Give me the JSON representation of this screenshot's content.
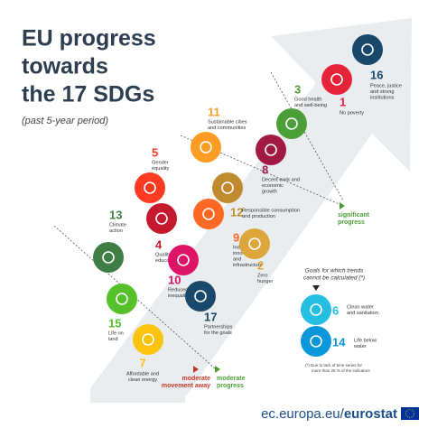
{
  "header": {
    "title": [
      "EU progress",
      "towards",
      "the 17 SDGs"
    ],
    "subtitle": "(past 5-year period)"
  },
  "zones": {
    "significant": [
      "significant",
      "progress"
    ],
    "moderate": [
      "moderate",
      "progress"
    ],
    "away": [
      "moderate",
      "movement away"
    ]
  },
  "nodes": [
    {
      "number": 16,
      "label": [
        "Peace, justice",
        "and strong",
        "institutions"
      ],
      "color": "#19486a"
    },
    {
      "number": 1,
      "label": [
        "No poverty"
      ],
      "color": "#e5243b"
    },
    {
      "number": 3,
      "label": [
        "Good health",
        "and well-being"
      ],
      "color": "#4c9f38"
    },
    {
      "number": 8,
      "label": [
        "Decent work and",
        "economic",
        "growth"
      ],
      "color": "#a21942"
    },
    {
      "number": 11,
      "label": [
        "Sustainable cities",
        "and communities"
      ],
      "color": "#fd9d24"
    },
    {
      "number": 5,
      "label": [
        "Gender",
        "equality"
      ],
      "color": "#ff3a21"
    },
    {
      "number": 12,
      "label": [
        "Responsible consumption",
        "and production"
      ],
      "color": "#bf8b2e"
    },
    {
      "number": 9,
      "label": [
        "Industry,",
        "innovation",
        "and",
        "infrastructure"
      ],
      "color": "#fd6925"
    },
    {
      "number": 2,
      "label": [
        "Zero",
        "hunger"
      ],
      "color": "#dda63a"
    },
    {
      "number": 13,
      "label": [
        "Climate",
        "action"
      ],
      "color": "#3f7e44"
    },
    {
      "number": 4,
      "label": [
        "Quality",
        "education"
      ],
      "color": "#c5192d"
    },
    {
      "number": 10,
      "label": [
        "Reduced",
        "inequalities"
      ],
      "color": "#dd1367"
    },
    {
      "number": 17,
      "label": [
        "Partnerships",
        "for the goals"
      ],
      "color": "#19486a"
    },
    {
      "number": 15,
      "label": [
        "Life on",
        "land"
      ],
      "color": "#56c02b"
    },
    {
      "number": 7,
      "label": [
        "Affordable and",
        "clean energy"
      ],
      "color": "#fcc30b"
    },
    {
      "number": 6,
      "label": [
        "Clean water",
        "and sanitation"
      ],
      "color": "#26bde2"
    },
    {
      "number": 14,
      "label": [
        "Life below",
        "water"
      ],
      "color": "#0a97d9"
    }
  ],
  "untracked": {
    "title": [
      "Goals for which trends",
      "cannot be calculated (*)"
    ],
    "footnote": [
      "(*)  Due to lack of time series for",
      "more than 25 % of the indicators"
    ]
  },
  "footer": {
    "site": "ec.europa.eu/",
    "brand": "eurostat"
  }
}
